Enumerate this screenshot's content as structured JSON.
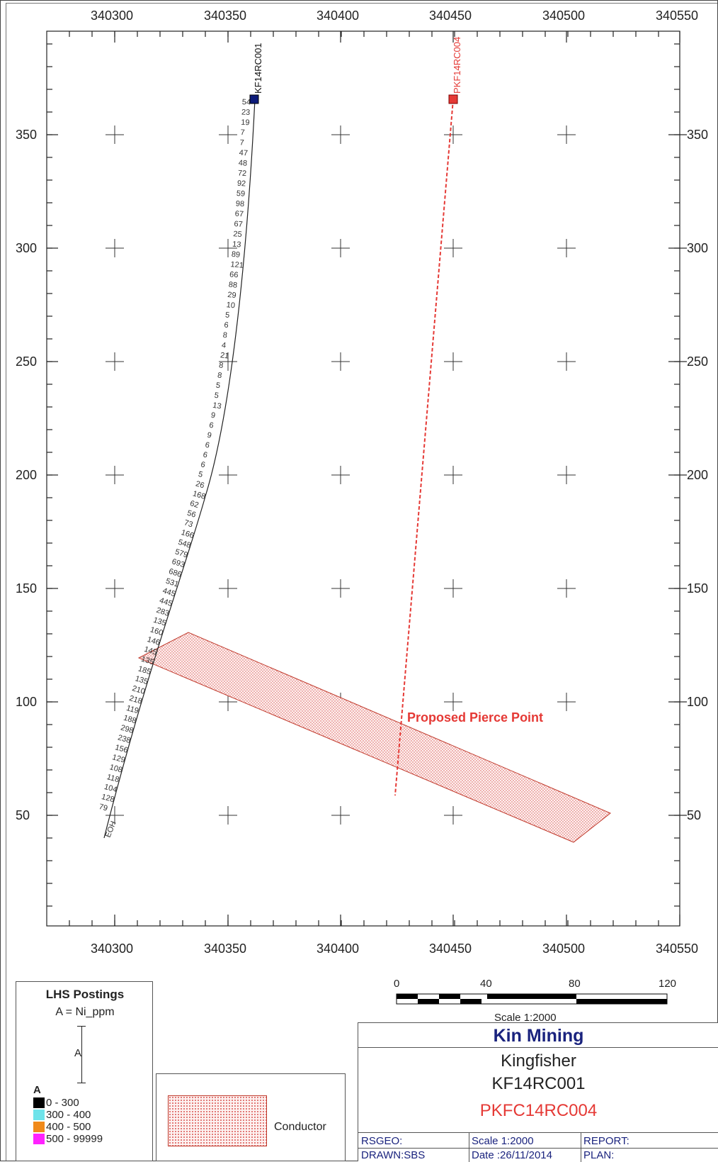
{
  "map": {
    "x_ticks_top": [
      "340300",
      "340350",
      "340400",
      "340450",
      "340500",
      "340550"
    ],
    "x_ticks_bottom": [
      "340300",
      "340350",
      "340400",
      "340450",
      "340500",
      "340550"
    ],
    "y_ticks_left": [
      "350",
      "300",
      "250",
      "200",
      "150",
      "100",
      "50"
    ],
    "y_ticks_right": [
      "350",
      "300",
      "250",
      "200",
      "150",
      "100",
      "50"
    ],
    "holes": [
      {
        "id": "KF14RC001",
        "color": "#1a237e",
        "collar_color": "#0d1b7a"
      },
      {
        "id": "PKF14RC004",
        "color": "#e53935",
        "collar_color": "#e53935"
      }
    ],
    "end_of_hole_label": "EOH",
    "pierce_point_label": "Proposed Pierce Point",
    "assay_values": [
      "54",
      "23",
      "19",
      "7",
      "7",
      "47",
      "48",
      "72",
      "92",
      "59",
      "98",
      "67",
      "67",
      "25",
      "13",
      "89",
      "121",
      "66",
      "88",
      "29",
      "10",
      "5",
      "6",
      "8",
      "4",
      "21",
      "8",
      "8",
      "5",
      "5",
      "13",
      "9",
      "6",
      "9",
      "6",
      "6",
      "6",
      "5",
      "26",
      "168",
      "62",
      "56",
      "73",
      "166",
      "548",
      "579",
      "693",
      "686",
      "531",
      "445",
      "445",
      "283",
      "135",
      "160",
      "146",
      "145",
      "135",
      "185",
      "135",
      "210",
      "218",
      "119",
      "188",
      "298",
      "238",
      "156",
      "129",
      "108",
      "118",
      "104",
      "128",
      "79"
    ],
    "assay_colors": {
      "low": "#333333",
      "mid": "#7ad7e0",
      "orange": "#e39a2b",
      "high": "#d43ad4"
    }
  },
  "scale_bar": {
    "labels": [
      "0",
      "40",
      "80",
      "120"
    ],
    "caption": "Scale 1:2000"
  },
  "legend": {
    "title": "LHS Postings",
    "subtitle": "A = Ni_ppm",
    "posting_letter": "A",
    "column_letter": "A",
    "entries": [
      {
        "label": "0 - 300",
        "color": "#000000"
      },
      {
        "label": "300 - 400",
        "color": "#6fe3ea"
      },
      {
        "label": "400 - 500",
        "color": "#f08a1a"
      },
      {
        "label": "500 - 99999",
        "color": "#ff22ff"
      }
    ]
  },
  "conductor_legend": {
    "label": "Conductor"
  },
  "title_block": {
    "company": "Kin Mining",
    "project": "Kingfisher",
    "hole_id": "KF14RC001",
    "planned_hole": "PKFC14RC004",
    "rsgeo": "RSGEO:",
    "scale": "Scale 1:2000",
    "report": "REPORT:",
    "drawn": "DRAWN:SBS",
    "date": "Date :26/11/2014",
    "plan": "PLAN:"
  }
}
